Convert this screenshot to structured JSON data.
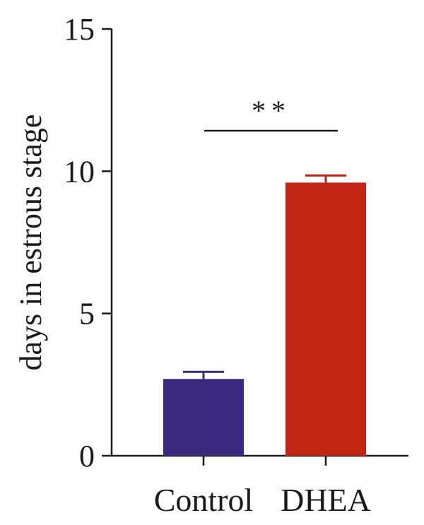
{
  "chart_data": {
    "type": "bar",
    "categories": [
      "Control",
      "DHEA"
    ],
    "values": [
      2.7,
      9.6
    ],
    "errors": [
      0.25,
      0.25
    ],
    "colors": [
      "#392a80",
      "#c12514"
    ],
    "title": "",
    "xlabel": "",
    "ylabel": "days in estrous stage",
    "ylim": [
      0,
      15
    ],
    "yticks": [
      0,
      5,
      10,
      15
    ],
    "significance": {
      "between": [
        "Control",
        "DHEA"
      ],
      "label": "**"
    },
    "grid": false,
    "legend": "none"
  }
}
